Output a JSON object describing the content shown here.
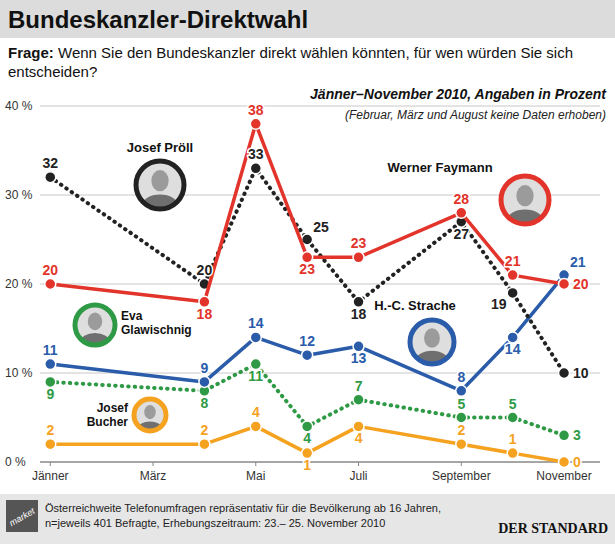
{
  "chart_data": {
    "type": "line",
    "title": "Bundeskanzler-Direktwahl",
    "question_label": "Frage:",
    "question": "Wenn Sie den Bundeskanzler direkt wählen könnten, für wen würden Sie sich entscheiden?",
    "subtitle": "Jänner–November 2010, Angaben in Prozent",
    "note": "(Februar, März und August keine Daten erhoben)",
    "x": [
      1,
      4,
      5,
      6,
      7,
      9,
      10,
      11
    ],
    "xlim": [
      0.8,
      11.7
    ],
    "xticks": [
      {
        "value": 1,
        "label": "Jänner"
      },
      {
        "value": 3,
        "label": "März"
      },
      {
        "value": 5,
        "label": "Mai"
      },
      {
        "value": 7,
        "label": "Juli"
      },
      {
        "value": 9,
        "label": "September"
      },
      {
        "value": 11,
        "label": "November"
      }
    ],
    "ylim": [
      0,
      40
    ],
    "yticks": [
      {
        "value": 0,
        "label": "0 %"
      },
      {
        "value": 10,
        "label": "10 %"
      },
      {
        "value": 20,
        "label": "20 %"
      },
      {
        "value": 30,
        "label": "30 %"
      },
      {
        "value": 40,
        "label": "40 %"
      }
    ],
    "grid": true,
    "data_labels": true,
    "series": [
      {
        "name": "Werner Faymann",
        "color": "#e2342b",
        "marker": "circle",
        "line_style": "solid",
        "values": [
          20,
          18,
          38,
          23,
          23,
          28,
          21,
          20
        ]
      },
      {
        "name": "Josef Pröll",
        "color": "#222222",
        "marker": "circle",
        "line_style": "dotted",
        "values": [
          32,
          20,
          33,
          25,
          18,
          27,
          19,
          10
        ]
      },
      {
        "name": "H.-C. Strache",
        "color": "#2a5caa",
        "marker": "circle",
        "line_style": "solid",
        "values": [
          11,
          9,
          14,
          12,
          13,
          8,
          14,
          21
        ]
      },
      {
        "name": "Eva Glawischnig",
        "color": "#2f9a45",
        "marker": "circle",
        "line_style": "dotted",
        "values": [
          9,
          8,
          11,
          4,
          7,
          5,
          5,
          3
        ]
      },
      {
        "name": "Josef Bucher",
        "color": "#f4a21f",
        "marker": "circle",
        "line_style": "solid",
        "values": [
          2,
          2,
          4,
          1,
          4,
          2,
          1,
          0
        ]
      }
    ],
    "source": [
      "Österreichweite Telefonumfragen repräsentativ für die Bevölkerung ab 16 Jahren,",
      "n=jeweils 401 Befragte, Erhebungszeitraum: 23.– 25. November 2010"
    ],
    "logo": "market",
    "publisher": "DER STANDARD"
  }
}
